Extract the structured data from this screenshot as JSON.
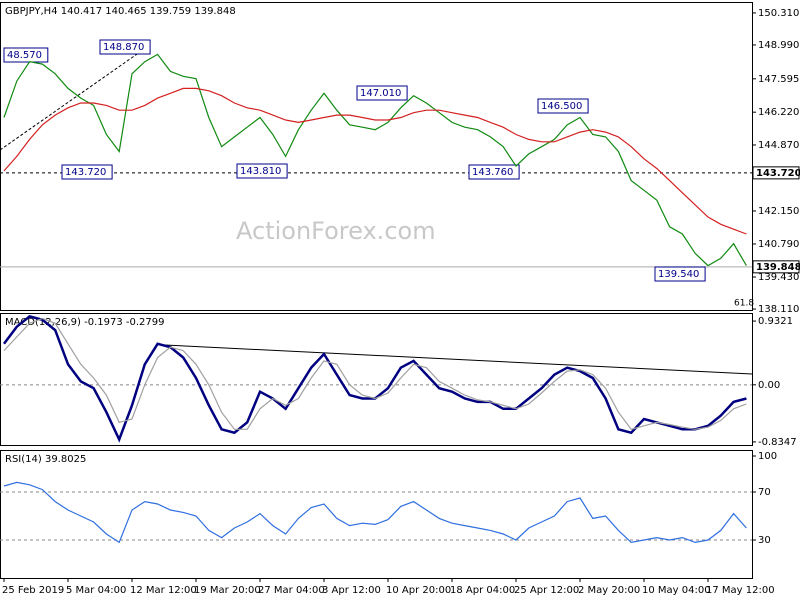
{
  "chart_data": [
    {
      "type": "line",
      "title": "GBPJPY,H4  140.417 140.465 139.759 139.848",
      "watermark": "ActionForex.com",
      "note": "61.8",
      "ylim": [
        138.07,
        150.76
      ],
      "yticks": [
        {
          "value": 150.31,
          "label": "150.310"
        },
        {
          "value": 148.99,
          "label": "148.990"
        },
        {
          "value": 147.595,
          "label": "147.595"
        },
        {
          "value": 146.22,
          "label": "146.220"
        },
        {
          "value": 144.87,
          "label": "144.870"
        },
        {
          "value": 142.15,
          "label": "142.150"
        },
        {
          "value": 140.79,
          "label": "140.790"
        },
        {
          "value": 139.43,
          "label": "139.430"
        },
        {
          "value": 138.11,
          "label": "138.110"
        }
      ],
      "levels": [
        {
          "value": 143.72,
          "label": "143.720",
          "style": "dashed"
        },
        {
          "value": 139.848,
          "label": "139.848",
          "style": "solid"
        }
      ],
      "annotations": [
        "48.570",
        "148.870",
        "143.720",
        "143.810",
        "147.010",
        "143.760",
        "146.500",
        "139.540"
      ],
      "series": [
        {
          "color": "#108a10",
          "values": [
            146.0,
            147.5,
            148.3,
            148.2,
            147.8,
            147.2,
            146.8,
            146.5,
            145.3,
            144.6,
            147.8,
            148.3,
            148.6,
            147.9,
            147.7,
            147.6,
            146.0,
            144.8,
            145.2,
            145.6,
            146.0,
            145.3,
            144.4,
            145.5,
            146.3,
            147.0,
            146.3,
            145.7,
            145.6,
            145.5,
            145.8,
            146.4,
            146.9,
            146.6,
            146.2,
            145.8,
            145.6,
            145.5,
            145.2,
            144.8,
            144.0,
            144.5,
            144.8,
            145.1,
            145.7,
            146.0,
            145.3,
            145.2,
            144.6,
            143.4,
            143.0,
            142.6,
            141.5,
            141.2,
            140.4,
            139.9,
            140.2,
            140.8,
            139.9
          ]
        },
        {
          "color": "#d42020",
          "values": [
            143.8,
            144.4,
            145.1,
            145.7,
            146.1,
            146.4,
            146.6,
            146.6,
            146.5,
            146.3,
            146.3,
            146.5,
            146.8,
            147.0,
            147.2,
            147.2,
            147.1,
            146.9,
            146.6,
            146.4,
            146.3,
            146.1,
            145.9,
            145.8,
            145.9,
            146.0,
            146.1,
            146.1,
            146.0,
            145.9,
            145.9,
            146.0,
            146.2,
            146.3,
            146.3,
            146.2,
            146.1,
            146.0,
            145.8,
            145.6,
            145.3,
            145.1,
            145.0,
            145.0,
            145.2,
            145.4,
            145.5,
            145.4,
            145.2,
            144.8,
            144.3,
            143.9,
            143.4,
            142.9,
            142.4,
            141.9,
            141.6,
            141.4,
            141.2
          ]
        }
      ]
    },
    {
      "type": "line",
      "title": "MACD(12,26,9) -0.1973 -0.2799",
      "ylim": [
        -0.88,
        1.05
      ],
      "yticks": [
        0.9321,
        {
          "value": 0,
          "label": "0.00"
        },
        -0.8347
      ],
      "series": [
        {
          "color": "#000080",
          "values": [
            0.6,
            0.85,
            1.0,
            0.95,
            0.8,
            0.3,
            0.05,
            -0.05,
            -0.4,
            -0.8,
            -0.3,
            0.3,
            0.6,
            0.55,
            0.4,
            0.1,
            -0.3,
            -0.65,
            -0.7,
            -0.55,
            -0.1,
            -0.2,
            -0.35,
            -0.05,
            0.25,
            0.45,
            0.15,
            -0.15,
            -0.2,
            -0.2,
            -0.05,
            0.25,
            0.35,
            0.15,
            -0.05,
            -0.1,
            -0.2,
            -0.25,
            -0.25,
            -0.35,
            -0.35,
            -0.2,
            -0.05,
            0.15,
            0.25,
            0.2,
            0.1,
            -0.2,
            -0.65,
            -0.7,
            -0.5,
            -0.55,
            -0.6,
            -0.65,
            -0.65,
            -0.6,
            -0.45,
            -0.25,
            -0.2
          ]
        },
        {
          "color": "#a0a0a0",
          "values": [
            0.5,
            0.7,
            0.9,
            0.97,
            0.9,
            0.6,
            0.3,
            0.1,
            -0.15,
            -0.55,
            -0.5,
            0.0,
            0.4,
            0.55,
            0.5,
            0.3,
            0.0,
            -0.4,
            -0.65,
            -0.65,
            -0.35,
            -0.2,
            -0.3,
            -0.2,
            0.1,
            0.35,
            0.3,
            0.0,
            -0.15,
            -0.2,
            -0.12,
            0.1,
            0.3,
            0.25,
            0.05,
            -0.05,
            -0.15,
            -0.22,
            -0.25,
            -0.3,
            -0.35,
            -0.28,
            -0.12,
            0.05,
            0.2,
            0.22,
            0.15,
            -0.05,
            -0.4,
            -0.65,
            -0.6,
            -0.55,
            -0.58,
            -0.62,
            -0.65,
            -0.62,
            -0.52,
            -0.35,
            -0.28
          ]
        }
      ]
    },
    {
      "type": "line",
      "title": "RSI(14) 39.8025",
      "ylim": [
        0,
        105
      ],
      "yticks": [
        100,
        70,
        30
      ],
      "dashed": [
        70,
        30
      ],
      "categories": [
        "25 Feb 2019",
        null,
        null,
        null,
        null,
        "5 Mar 04:00",
        null,
        null,
        null,
        null,
        "12 Mar 12:00",
        null,
        null,
        null,
        null,
        "19 Mar 20:00",
        null,
        null,
        null,
        null,
        "27 Mar 04:00",
        null,
        null,
        null,
        null,
        "3 Apr 12:00",
        null,
        null,
        null,
        null,
        "10 Apr 20:00",
        null,
        null,
        null,
        null,
        "18 Apr 04:00",
        null,
        null,
        null,
        null,
        "25 Apr 12:00",
        null,
        null,
        null,
        null,
        "2 May 20:00",
        null,
        null,
        null,
        null,
        "10 May 04:00",
        null,
        null,
        null,
        null,
        "17 May 12:00",
        null,
        null,
        null
      ],
      "series": [
        {
          "color": "#2f6fe0",
          "values": [
            75,
            78,
            76,
            72,
            62,
            55,
            50,
            45,
            35,
            28,
            55,
            62,
            60,
            55,
            53,
            50,
            38,
            32,
            40,
            45,
            52,
            42,
            35,
            48,
            57,
            60,
            48,
            42,
            44,
            43,
            47,
            58,
            62,
            55,
            48,
            44,
            42,
            40,
            38,
            35,
            30,
            40,
            45,
            50,
            62,
            65,
            48,
            50,
            38,
            28,
            30,
            32,
            30,
            32,
            28,
            30,
            38,
            52,
            40
          ]
        }
      ]
    }
  ]
}
